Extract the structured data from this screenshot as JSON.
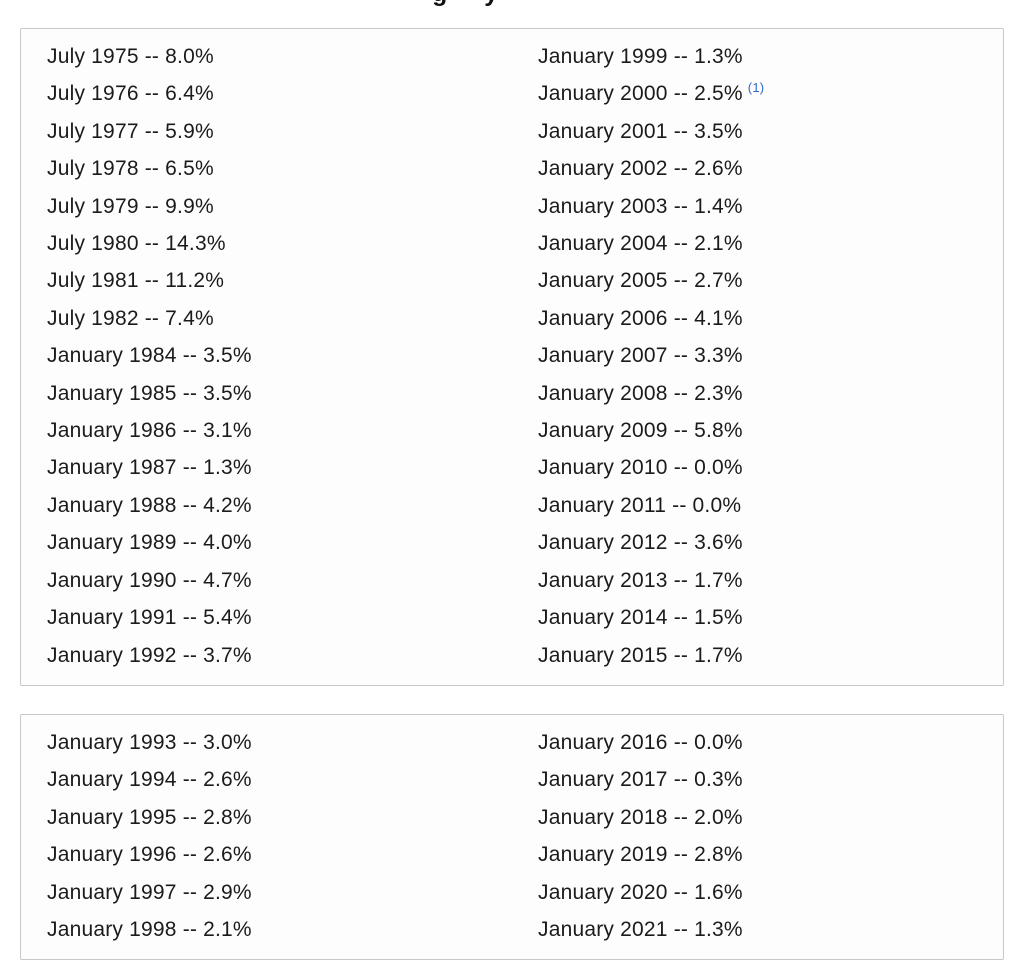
{
  "colors": {
    "text": "#1b1b1b",
    "link_blue": "#3366cc",
    "box_border": "#c6c8ca",
    "box_background": "#fdfdfd"
  },
  "clipped_heading": {
    "visible_text": "g y",
    "note_visible": "only bottom descenders of heading letters are visible at top edge"
  },
  "boxes": [
    {
      "left": [
        "July 1975 -- 8.0%",
        "July 1976 -- 6.4%",
        "July 1977 -- 5.9%",
        "July 1978 -- 6.5%",
        "July 1979 -- 9.9%",
        "July 1980 -- 14.3%",
        "July 1981 -- 11.2%",
        "July 1982 -- 7.4%",
        "January 1984 -- 3.5%",
        "January 1985 -- 3.5%",
        "January 1986 -- 3.1%",
        "January 1987 -- 1.3%",
        "January 1988 -- 4.2%",
        "January 1989 -- 4.0%",
        "January 1990 -- 4.7%",
        "January 1991 -- 5.4%",
        "January 1992 -- 3.7%"
      ],
      "right": [
        "January 1999 -- 1.3%",
        {
          "text": "January 2000 -- 2.5%",
          "ref": "(1)"
        },
        "January 2001 -- 3.5%",
        "January 2002 -- 2.6%",
        "January 2003 -- 1.4%",
        "January 2004 -- 2.1%",
        "January 2005 -- 2.7%",
        "January 2006 -- 4.1%",
        "January 2007 -- 3.3%",
        "January 2008 -- 2.3%",
        "January 2009 -- 5.8%",
        "January 2010 -- 0.0%",
        "January 2011 -- 0.0%",
        "January 2012 -- 3.6%",
        "January 2013 -- 1.7%",
        "January 2014 -- 1.5%",
        "January 2015 -- 1.7%"
      ]
    },
    {
      "left": [
        "January 1993 -- 3.0%",
        "January 1994 -- 2.6%",
        "January 1995 -- 2.8%",
        "January 1996 -- 2.6%",
        "January 1997 -- 2.9%",
        "January 1998 -- 2.1%"
      ],
      "right": [
        "January 2016 -- 0.0%",
        "January 2017 -- 0.3%",
        "January 2018 -- 2.0%",
        "January 2019 -- 2.8%",
        "January 2020 -- 1.6%",
        "January 2021 -- 1.3%"
      ]
    }
  ]
}
